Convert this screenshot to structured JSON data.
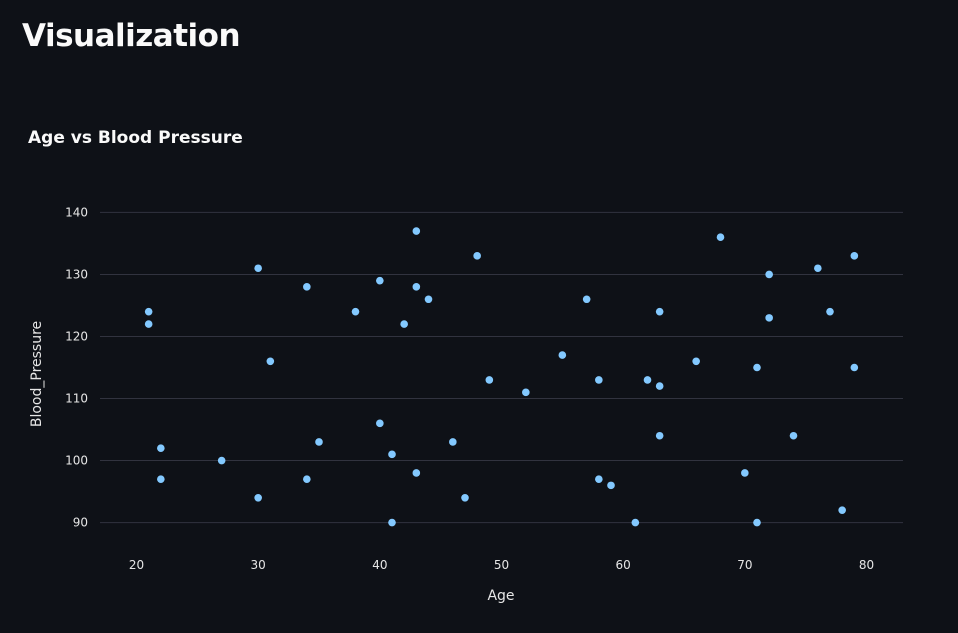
{
  "page": {
    "title": "Visualization"
  },
  "colors": {
    "background": "#0e1117",
    "point": "#83c9ff",
    "grid": "#31333f",
    "text": "#fafafa",
    "tick": "#e6e6e6"
  },
  "chart_data": {
    "type": "scatter",
    "title": "Age vs Blood Pressure",
    "xlabel": "Age",
    "ylabel": "Blood_Pressure",
    "xlim": [
      17,
      83
    ],
    "ylim": [
      88,
      142
    ],
    "xticks": [
      20,
      30,
      40,
      50,
      60,
      70,
      80
    ],
    "yticks": [
      90,
      100,
      110,
      120,
      130,
      140
    ],
    "grid": "horizontal",
    "series": [
      {
        "points": [
          {
            "x": 21,
            "y": 124
          },
          {
            "x": 21,
            "y": 122
          },
          {
            "x": 22,
            "y": 102
          },
          {
            "x": 22,
            "y": 97
          },
          {
            "x": 27,
            "y": 100
          },
          {
            "x": 30,
            "y": 131
          },
          {
            "x": 30,
            "y": 94
          },
          {
            "x": 31,
            "y": 116
          },
          {
            "x": 34,
            "y": 128
          },
          {
            "x": 34,
            "y": 97
          },
          {
            "x": 35,
            "y": 103
          },
          {
            "x": 38,
            "y": 124
          },
          {
            "x": 40,
            "y": 129
          },
          {
            "x": 40,
            "y": 106
          },
          {
            "x": 41,
            "y": 101
          },
          {
            "x": 41,
            "y": 90
          },
          {
            "x": 42,
            "y": 122
          },
          {
            "x": 43,
            "y": 137
          },
          {
            "x": 43,
            "y": 128
          },
          {
            "x": 43,
            "y": 98
          },
          {
            "x": 44,
            "y": 126
          },
          {
            "x": 46,
            "y": 103
          },
          {
            "x": 47,
            "y": 94
          },
          {
            "x": 48,
            "y": 133
          },
          {
            "x": 49,
            "y": 113
          },
          {
            "x": 52,
            "y": 111
          },
          {
            "x": 55,
            "y": 117
          },
          {
            "x": 57,
            "y": 126
          },
          {
            "x": 58,
            "y": 113
          },
          {
            "x": 58,
            "y": 97
          },
          {
            "x": 59,
            "y": 96
          },
          {
            "x": 61,
            "y": 90
          },
          {
            "x": 62,
            "y": 113
          },
          {
            "x": 63,
            "y": 124
          },
          {
            "x": 63,
            "y": 112
          },
          {
            "x": 63,
            "y": 104
          },
          {
            "x": 66,
            "y": 116
          },
          {
            "x": 68,
            "y": 136
          },
          {
            "x": 70,
            "y": 98
          },
          {
            "x": 71,
            "y": 115
          },
          {
            "x": 71,
            "y": 90
          },
          {
            "x": 72,
            "y": 130
          },
          {
            "x": 72,
            "y": 123
          },
          {
            "x": 74,
            "y": 104
          },
          {
            "x": 76,
            "y": 131
          },
          {
            "x": 77,
            "y": 124
          },
          {
            "x": 78,
            "y": 92
          },
          {
            "x": 79,
            "y": 133
          },
          {
            "x": 79,
            "y": 115
          }
        ]
      }
    ]
  }
}
